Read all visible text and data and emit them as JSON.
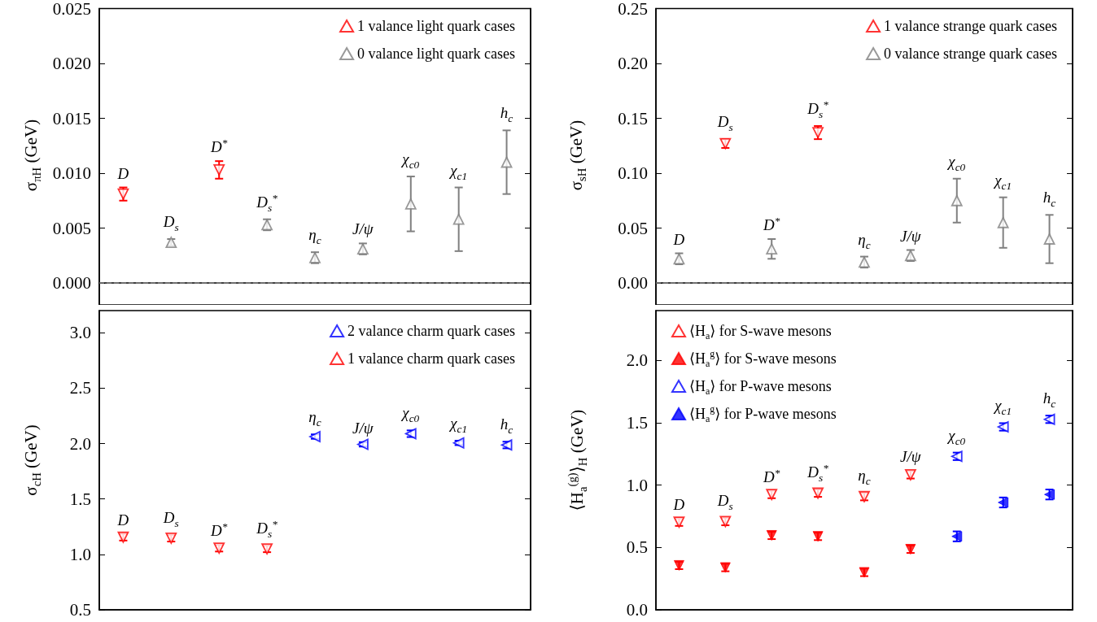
{
  "chart_data": [
    {
      "type": "scatter",
      "ylabel": "σ$_{πH}$ (GeV)",
      "categories": [
        "D",
        "D$_{s}$",
        "D$^{*}$",
        "D$_{s}$$^{*}$",
        "η$_{c}$",
        "J/ψ",
        "χ$_{c0}$",
        "χ$_{c1}$",
        "h$_{c}$"
      ],
      "tick_labels": "y",
      "ylim": [
        -0.002,
        0.025
      ],
      "yticks": [
        {
          "value": 0,
          "label": "0.000"
        },
        0.005,
        {
          "value": 0.01,
          "label": "0.010"
        },
        0.015,
        {
          "value": 0.02,
          "label": "0.020"
        },
        0.025
      ],
      "legend": "top right",
      "grid": false,
      "ref_lines": [
        {
          "axis": "y",
          "value": 0,
          "color": "#808080",
          "line_style": "dashed"
        }
      ],
      "series": [
        {
          "name": "1 valance light quark cases",
          "color": "#ff0000",
          "marker": "triangle-down-open",
          "values": [
            0.0081,
            null,
            0.0103,
            null,
            null,
            null,
            null,
            null,
            null
          ],
          "errors": [
            0.0006,
            null,
            0.0008,
            null,
            null,
            null,
            null,
            null,
            null
          ]
        },
        {
          "name": "0 valance light quark cases",
          "color": "#808080",
          "marker": "triangle-up-open",
          "values": [
            null,
            0.0037,
            null,
            0.0053,
            0.0023,
            0.0031,
            0.0072,
            0.0058,
            0.011
          ],
          "errors": [
            null,
            0.0003,
            null,
            0.0005,
            0.0005,
            0.0005,
            0.0025,
            0.0029,
            0.0029
          ]
        }
      ]
    },
    {
      "type": "scatter",
      "ylabel": "σ$_{sH}$ (GeV)",
      "categories": [
        "D",
        "D$_{s}$",
        "D$^{*}$",
        "D$_{s}$$^{*}$",
        "η$_{c}$",
        "J/ψ",
        "χ$_{c0}$",
        "χ$_{c1}$",
        "h$_{c}$"
      ],
      "tick_labels": "y",
      "ylim": [
        -0.02,
        0.25
      ],
      "yticks": [
        {
          "value": 0,
          "label": "0.00"
        },
        0.05,
        {
          "value": 0.1,
          "label": "0.10"
        },
        0.15,
        {
          "value": 0.2,
          "label": "0.20"
        },
        0.25
      ],
      "legend": "top right",
      "grid": false,
      "ref_lines": [
        {
          "axis": "y",
          "value": 0,
          "color": "#808080",
          "line_style": "dashed"
        }
      ],
      "series": [
        {
          "name": "1 valance strange quark cases",
          "color": "#ff0000",
          "marker": "triangle-down-open",
          "values": [
            null,
            0.127,
            null,
            0.137,
            null,
            null,
            null,
            null,
            null
          ],
          "errors": [
            null,
            0.004,
            null,
            0.006,
            null,
            null,
            null,
            null,
            null
          ]
        },
        {
          "name": "0 valance strange quark cases",
          "color": "#808080",
          "marker": "triangle-up-open",
          "values": [
            0.022,
            null,
            0.031,
            null,
            0.019,
            0.025,
            0.075,
            0.055,
            0.04
          ],
          "errors": [
            0.005,
            null,
            0.009,
            null,
            0.005,
            0.005,
            0.02,
            0.023,
            0.022
          ]
        }
      ]
    },
    {
      "type": "scatter",
      "ylabel": "σ$_{cH}$ (GeV)",
      "categories": [
        "D",
        "D$_{s}$",
        "D$^{*}$",
        "D$_{s}$$^{*}$",
        "η$_{c}$",
        "J/ψ",
        "χ$_{c0}$",
        "χ$_{c1}$",
        "h$_{c}$"
      ],
      "tick_labels": "y",
      "ylim": [
        0.5,
        3.2
      ],
      "yticks": [
        0.5,
        {
          "value": 1,
          "label": "1.0"
        },
        1.5,
        {
          "value": 2,
          "label": "2.0"
        },
        2.5,
        {
          "value": 3,
          "label": "3.0"
        }
      ],
      "legend": "top right",
      "grid": false,
      "series": [
        {
          "name": "2 valance charm quark cases",
          "color": "#0000ff",
          "marker": "triangle-left-open",
          "values": [
            null,
            null,
            null,
            null,
            2.063,
            1.993,
            2.089,
            2.006,
            1.987
          ],
          "errors": [
            null,
            null,
            null,
            null,
            0.02,
            0.02,
            0.03,
            0.02,
            0.03
          ]
        },
        {
          "name": "1 valance charm quark cases",
          "color": "#ff0000",
          "marker": "triangle-down-open",
          "values": [
            1.155,
            1.146,
            1.056,
            1.05,
            null,
            null,
            null,
            null,
            null
          ],
          "errors": [
            0.03,
            0.03,
            0.03,
            0.03,
            null,
            null,
            null,
            null,
            null
          ]
        }
      ]
    },
    {
      "type": "scatter",
      "ylabel": "⟨H$_{a}$$^{(g)}$⟩$_{H}$ (GeV)",
      "categories": [
        "D",
        "D$_{s}$",
        "D$^{*}$",
        "D$_{s}$$^{*}$",
        "η$_{c}$",
        "J/ψ",
        "χ$_{c0}$",
        "χ$_{c1}$",
        "h$_{c}$"
      ],
      "tick_labels": "y",
      "ylim": [
        0,
        2.4
      ],
      "yticks": [
        {
          "value": 0,
          "label": "0.0"
        },
        0.5,
        {
          "value": 1,
          "label": "1.0"
        },
        1.5,
        {
          "value": 2,
          "label": "2.0"
        }
      ],
      "legend": "top left",
      "grid": false,
      "series": [
        {
          "name": "⟨H$_{a}$⟩ for S-wave mesons",
          "color": "#ff0000",
          "marker": "triangle-down-open",
          "values": [
            0.703,
            0.708,
            0.925,
            0.936,
            0.908,
            1.083,
            null,
            null,
            null
          ],
          "errors": [
            0.03,
            0.03,
            0.03,
            0.03,
            0.03,
            0.03,
            null,
            null,
            null
          ]
        },
        {
          "name": "⟨H$_{a}$$^{g}$⟩ for S-wave mesons",
          "color": "#ff0000",
          "marker": "triangle-down",
          "values": [
            0.356,
            0.339,
            0.597,
            0.589,
            0.3,
            0.486,
            null,
            null,
            null
          ],
          "errors": [
            0.03,
            0.03,
            0.03,
            0.03,
            0.03,
            0.03,
            null,
            null,
            null
          ]
        },
        {
          "name": "⟨H$_{a}$⟩ for P-wave mesons",
          "color": "#0000ff",
          "marker": "triangle-left-open",
          "values": [
            null,
            null,
            null,
            null,
            null,
            null,
            1.231,
            1.467,
            1.528
          ],
          "errors": [
            null,
            null,
            null,
            null,
            null,
            null,
            0.03,
            0.03,
            0.03
          ]
        },
        {
          "name": "⟨H$_{a}$$^{g}$⟩ for P-wave mesons",
          "color": "#0000ff",
          "marker": "triangle-left",
          "values": [
            null,
            null,
            null,
            null,
            null,
            null,
            0.589,
            0.861,
            0.925
          ],
          "errors": [
            null,
            null,
            null,
            null,
            null,
            null,
            0.04,
            0.04,
            0.04
          ]
        }
      ]
    }
  ]
}
